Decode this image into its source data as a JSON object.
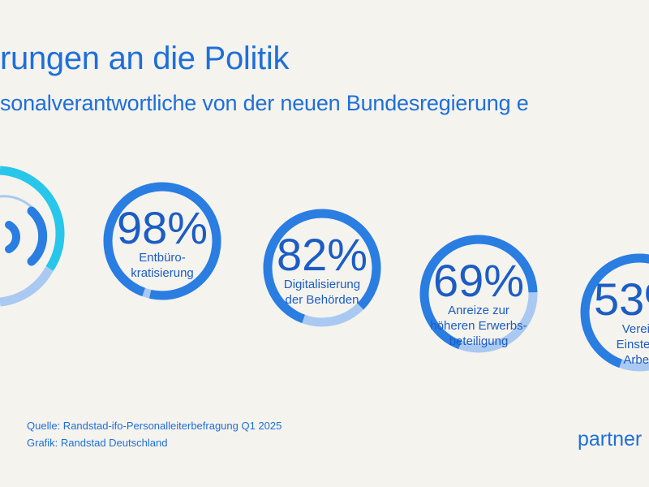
{
  "title": "rungen an die Politik",
  "subtitle": "sonalverantwortliche von der neuen Bundesregierung e",
  "chart_data": {
    "type": "donut",
    "unit": "%",
    "items": [
      {
        "value": 98,
        "label_lines": [
          "Entbüro-",
          "kratisierung"
        ]
      },
      {
        "value": 82,
        "label_lines": [
          "Digitalisierung",
          "der Behörden"
        ]
      },
      {
        "value": 69,
        "label_lines": [
          "Anreize zur",
          "höheren Erwerbs-",
          "beteiligung"
        ]
      },
      {
        "value": 53,
        "label_lines": [
          "Verein",
          "Einstellu",
          "Arbeit"
        ]
      }
    ]
  },
  "footer": {
    "source": "Quelle: Randstad-ifo-Personalleiterbefragung Q1 2025",
    "graphic": "Grafik: Randstad Deutschland"
  },
  "brand": "partner",
  "colors": {
    "background": "#f5f3ee",
    "ring_value": "#2a7de1",
    "ring_track": "#aac9f2",
    "text": "#1e6fd9",
    "logo_cyan": "#28c6ea"
  },
  "logo_icon": "sound-wave-icon"
}
